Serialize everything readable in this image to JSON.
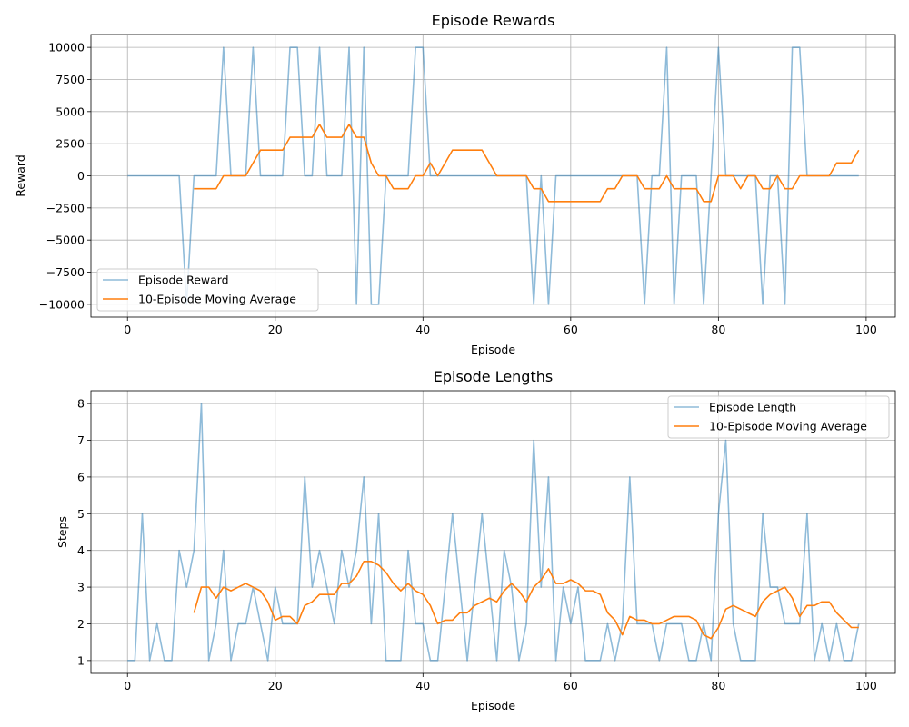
{
  "chart_data": [
    {
      "type": "line",
      "title": "Episode Rewards",
      "xlabel": "Episode",
      "ylabel": "Reward",
      "x": [
        0,
        1,
        2,
        3,
        4,
        5,
        6,
        7,
        8,
        9,
        10,
        11,
        12,
        13,
        14,
        15,
        16,
        17,
        18,
        19,
        20,
        21,
        22,
        23,
        24,
        25,
        26,
        27,
        28,
        29,
        30,
        31,
        32,
        33,
        34,
        35,
        36,
        37,
        38,
        39,
        40,
        41,
        42,
        43,
        44,
        45,
        46,
        47,
        48,
        49,
        50,
        51,
        52,
        53,
        54,
        55,
        56,
        57,
        58,
        59,
        60,
        61,
        62,
        63,
        64,
        65,
        66,
        67,
        68,
        69,
        70,
        71,
        72,
        73,
        74,
        75,
        76,
        77,
        78,
        79,
        80,
        81,
        82,
        83,
        84,
        85,
        86,
        87,
        88,
        89,
        90,
        91,
        92,
        93,
        94,
        95,
        96,
        97,
        98,
        99
      ],
      "series": [
        {
          "name": "Episode Reward",
          "color": "#1f77b4",
          "alpha": 0.5,
          "values": [
            0,
            0,
            0,
            0,
            0,
            0,
            0,
            0,
            -10000,
            0,
            0,
            0,
            0,
            10000,
            0,
            0,
            0,
            10000,
            0,
            0,
            0,
            0,
            10000,
            10000,
            0,
            0,
            10000,
            0,
            0,
            0,
            10000,
            -10000,
            10000,
            -10000,
            -10000,
            0,
            0,
            0,
            0,
            10000,
            10000,
            0,
            0,
            0,
            0,
            0,
            0,
            0,
            0,
            0,
            0,
            0,
            0,
            0,
            0,
            -10000,
            0,
            -10000,
            0,
            0,
            0,
            0,
            0,
            0,
            0,
            0,
            0,
            0,
            0,
            0,
            -10000,
            0,
            0,
            10000,
            -10000,
            0,
            0,
            0,
            -10000,
            0,
            10000,
            0,
            0,
            0,
            0,
            0,
            -10000,
            0,
            0,
            -10000,
            10000,
            10000,
            0,
            0,
            0,
            0,
            0,
            0,
            0,
            0
          ]
        },
        {
          "name": "10-Episode Moving Average",
          "color": "#ff7f0e",
          "alpha": 1,
          "values": [
            null,
            null,
            null,
            null,
            null,
            null,
            null,
            null,
            null,
            -1000,
            -1000,
            -1000,
            -1000,
            0,
            0,
            0,
            0,
            1000,
            2000,
            2000,
            2000,
            2000,
            3000,
            3000,
            3000,
            3000,
            4000,
            3000,
            3000,
            3000,
            4000,
            3000,
            3000,
            1000,
            0,
            0,
            -1000,
            -1000,
            -1000,
            0,
            0,
            1000,
            0,
            1000,
            2000,
            2000,
            2000,
            2000,
            2000,
            1000,
            0,
            0,
            0,
            0,
            0,
            -1000,
            -1000,
            -2000,
            -2000,
            -2000,
            -2000,
            -2000,
            -2000,
            -2000,
            -2000,
            -1000,
            -1000,
            0,
            0,
            0,
            -1000,
            -1000,
            -1000,
            0,
            -1000,
            -1000,
            -1000,
            -1000,
            -2000,
            -2000,
            0,
            0,
            0,
            -1000,
            0,
            0,
            -1000,
            -1000,
            0,
            -1000,
            -1000,
            0,
            0,
            0,
            0,
            0,
            1000,
            1000,
            1000,
            2000
          ]
        }
      ],
      "xlim": [
        -4.95,
        103.95
      ],
      "xticks": [
        0,
        20,
        40,
        60,
        80,
        100
      ],
      "ylim": [
        -11000,
        11000
      ],
      "yticks": [
        {
          "value": -10000,
          "label": "−10000"
        },
        {
          "value": -7500,
          "label": "−7500"
        },
        {
          "value": -5000,
          "label": "−5000"
        },
        {
          "value": -2500,
          "label": "−2500"
        },
        0,
        2500,
        5000,
        7500,
        10000
      ],
      "grid": true,
      "legend": "lower left"
    },
    {
      "type": "line",
      "title": "Episode Lengths",
      "xlabel": "Episode",
      "ylabel": "Steps",
      "x": [
        0,
        1,
        2,
        3,
        4,
        5,
        6,
        7,
        8,
        9,
        10,
        11,
        12,
        13,
        14,
        15,
        16,
        17,
        18,
        19,
        20,
        21,
        22,
        23,
        24,
        25,
        26,
        27,
        28,
        29,
        30,
        31,
        32,
        33,
        34,
        35,
        36,
        37,
        38,
        39,
        40,
        41,
        42,
        43,
        44,
        45,
        46,
        47,
        48,
        49,
        50,
        51,
        52,
        53,
        54,
        55,
        56,
        57,
        58,
        59,
        60,
        61,
        62,
        63,
        64,
        65,
        66,
        67,
        68,
        69,
        70,
        71,
        72,
        73,
        74,
        75,
        76,
        77,
        78,
        79,
        80,
        81,
        82,
        83,
        84,
        85,
        86,
        87,
        88,
        89,
        90,
        91,
        92,
        93,
        94,
        95,
        96,
        97,
        98,
        99
      ],
      "series": [
        {
          "name": "Episode Length",
          "color": "#1f77b4",
          "alpha": 0.5,
          "values": [
            1,
            1,
            5,
            1,
            2,
            1,
            1,
            4,
            3,
            4,
            8,
            1,
            2,
            4,
            1,
            2,
            2,
            3,
            2,
            1,
            3,
            2,
            2,
            2,
            6,
            3,
            4,
            3,
            2,
            4,
            3,
            4,
            6,
            2,
            5,
            1,
            1,
            1,
            4,
            2,
            2,
            1,
            1,
            3,
            5,
            3,
            1,
            3,
            5,
            3,
            1,
            4,
            3,
            1,
            2,
            7,
            3,
            6,
            1,
            3,
            2,
            3,
            1,
            1,
            1,
            2,
            1,
            2,
            6,
            2,
            2,
            2,
            1,
            2,
            2,
            2,
            1,
            1,
            2,
            1,
            5,
            7,
            2,
            1,
            1,
            1,
            5,
            3,
            3,
            2,
            2,
            2,
            5,
            1,
            2,
            1,
            2,
            1,
            1,
            2
          ]
        },
        {
          "name": "10-Episode Moving Average",
          "color": "#ff7f0e",
          "alpha": 1,
          "values": [
            null,
            null,
            null,
            null,
            null,
            null,
            null,
            null,
            null,
            2.3,
            3.0,
            3.0,
            2.7,
            3.0,
            2.9,
            3.0,
            3.1,
            3.0,
            2.9,
            2.6,
            2.1,
            2.2,
            2.2,
            2.0,
            2.5,
            2.6,
            2.8,
            2.8,
            2.8,
            3.1,
            3.1,
            3.3,
            3.7,
            3.7,
            3.6,
            3.4,
            3.1,
            2.9,
            3.1,
            2.9,
            2.8,
            2.5,
            2.0,
            2.1,
            2.1,
            2.3,
            2.3,
            2.5,
            2.6,
            2.7,
            2.6,
            2.9,
            3.1,
            2.9,
            2.6,
            3.0,
            3.2,
            3.5,
            3.1,
            3.1,
            3.2,
            3.1,
            2.9,
            2.9,
            2.8,
            2.3,
            2.1,
            1.7,
            2.2,
            2.1,
            2.1,
            2.0,
            2.0,
            2.1,
            2.2,
            2.2,
            2.2,
            2.1,
            1.7,
            1.6,
            1.9,
            2.4,
            2.5,
            2.4,
            2.3,
            2.2,
            2.6,
            2.8,
            2.9,
            3.0,
            2.7,
            2.2,
            2.5,
            2.5,
            2.6,
            2.6,
            2.3,
            2.1,
            1.9,
            1.9
          ]
        }
      ],
      "xlim": [
        -4.95,
        103.95
      ],
      "xticks": [
        0,
        20,
        40,
        60,
        80,
        100
      ],
      "ylim": [
        0.65,
        8.35
      ],
      "yticks": [
        1,
        2,
        3,
        4,
        5,
        6,
        7,
        8
      ],
      "grid": true,
      "legend": "upper right"
    }
  ]
}
